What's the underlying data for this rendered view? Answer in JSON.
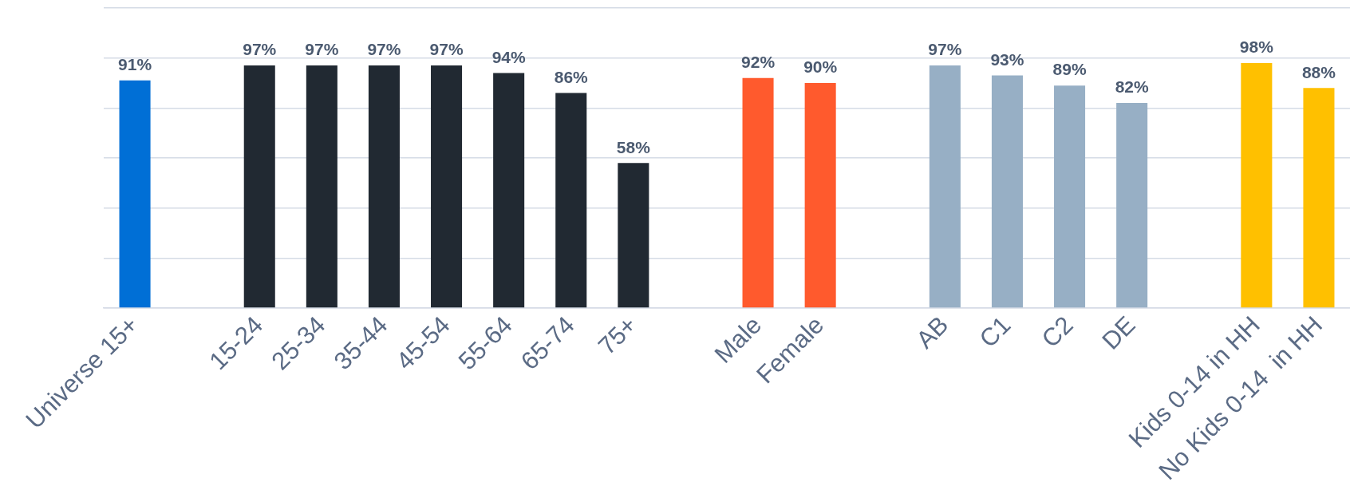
{
  "chart_data": {
    "type": "bar",
    "categories": [
      "Universe 15+",
      null,
      "15-24",
      "25-34",
      "35-44",
      "45-54",
      "55-64",
      "65-74",
      "75+",
      null,
      "Male",
      "Female",
      null,
      "AB",
      "C1",
      "C2",
      "DE",
      null,
      "Kids 0-14 in HH",
      "No Kids 0-14  in HH"
    ],
    "values": [
      91,
      null,
      97,
      97,
      97,
      97,
      94,
      86,
      58,
      null,
      92,
      90,
      null,
      97,
      93,
      89,
      82,
      null,
      98,
      88
    ],
    "colors": [
      "#006fd6",
      null,
      "#212932",
      "#212932",
      "#212932",
      "#212932",
      "#212932",
      "#212932",
      "#212932",
      null,
      "#ff5a2d",
      "#ff5a2d",
      null,
      "#97afc5",
      "#97afc5",
      "#97afc5",
      "#97afc5",
      null,
      "#ffc000",
      "#ffc000"
    ],
    "value_labels": [
      "91%",
      null,
      "97%",
      "97%",
      "97%",
      "97%",
      "94%",
      "86%",
      "58%",
      null,
      "92%",
      "90%",
      null,
      "97%",
      "93%",
      "89%",
      "82%",
      null,
      "98%",
      "88%"
    ],
    "ylim": [
      0,
      120
    ],
    "yticks": [
      {
        "value": 0,
        "label": null
      },
      {
        "value": 20,
        "label": null
      },
      {
        "value": 40,
        "label": null
      },
      {
        "value": 60,
        "label": null
      },
      {
        "value": 80,
        "label": null
      },
      {
        "value": 100,
        "label": null
      },
      {
        "value": 120,
        "label": null
      }
    ],
    "grid": "y",
    "tick_labels": "x",
    "legend": false
  }
}
